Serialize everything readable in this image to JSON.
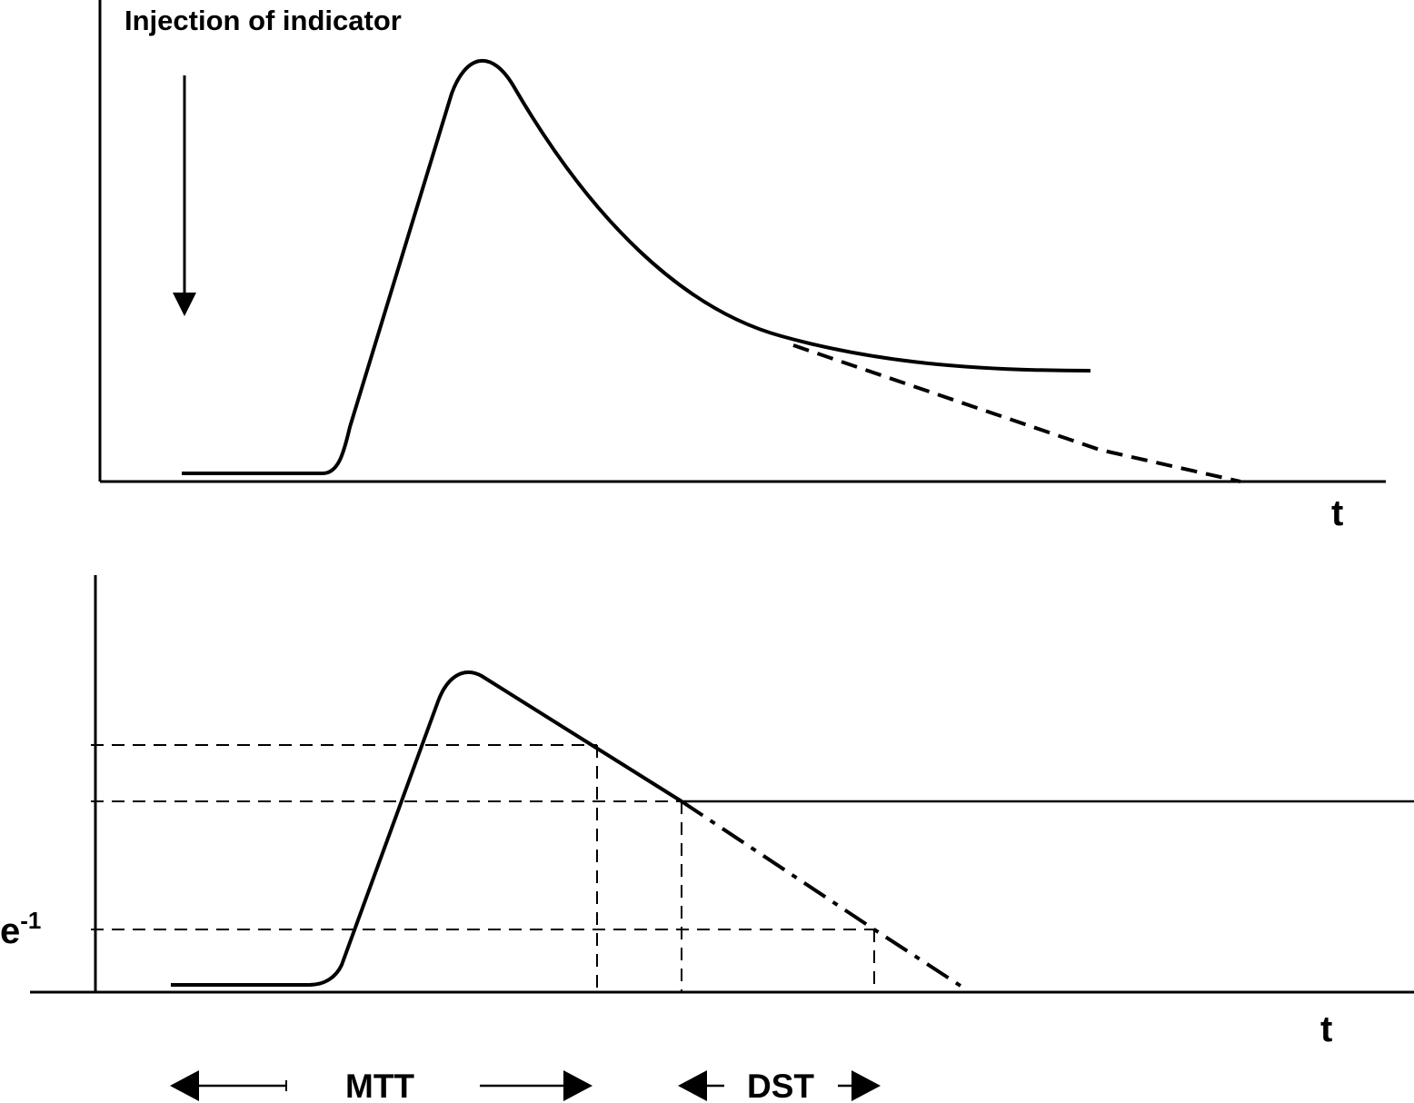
{
  "top_panel": {
    "injection_label": "Injection of indicator",
    "x_axis_label": "t"
  },
  "bottom_panel": {
    "threshold_label_base": "e",
    "threshold_label_exp": "-1",
    "x_axis_label": "t",
    "mtt_label": "MTT",
    "dst_label": "DST"
  },
  "colors": {
    "ink": "#000000",
    "background": "#ffffff"
  }
}
